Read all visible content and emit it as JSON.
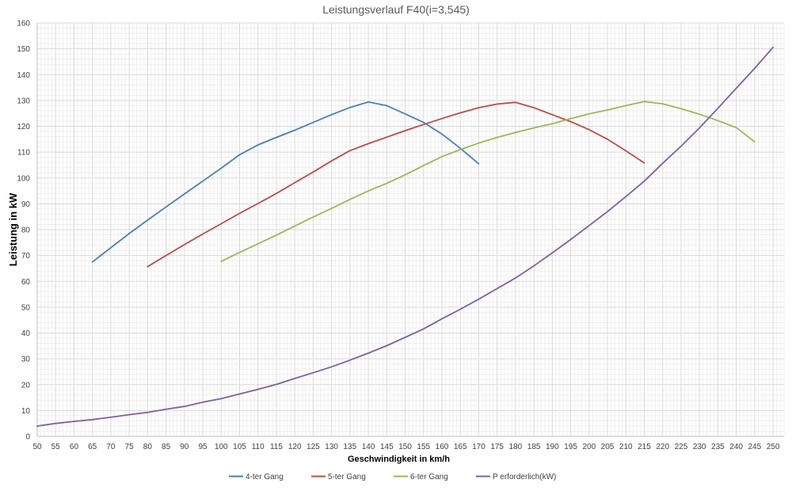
{
  "chart_data": {
    "type": "line",
    "title": "Leistungsverlauf F40(i=3,545)",
    "xlabel": "Geschwindigkeit in km/h",
    "ylabel": "Leistung in kW",
    "xlim": [
      50,
      253
    ],
    "ylim": [
      0,
      160
    ],
    "x_ticks": [
      50,
      55,
      60,
      65,
      70,
      75,
      80,
      85,
      90,
      95,
      100,
      105,
      110,
      115,
      120,
      125,
      130,
      135,
      140,
      145,
      150,
      155,
      160,
      165,
      170,
      175,
      180,
      185,
      190,
      195,
      200,
      205,
      210,
      215,
      220,
      225,
      230,
      235,
      240,
      245,
      250
    ],
    "y_ticks": [
      0,
      10,
      20,
      30,
      40,
      50,
      60,
      70,
      80,
      90,
      100,
      110,
      120,
      130,
      140,
      150,
      160
    ],
    "grid": true,
    "legend_position": "bottom",
    "series": [
      {
        "name": "4-ter Gang",
        "color": "#4a7ebb",
        "points": [
          [
            65,
            67.5
          ],
          [
            70,
            73
          ],
          [
            75,
            78.5
          ],
          [
            80,
            83.7
          ],
          [
            85,
            88.8
          ],
          [
            90,
            93.8
          ],
          [
            95,
            98.8
          ],
          [
            100,
            103.8
          ],
          [
            105,
            109
          ],
          [
            110,
            112.8
          ],
          [
            115,
            115.7
          ],
          [
            120,
            118.5
          ],
          [
            125,
            121.5
          ],
          [
            130,
            124.5
          ],
          [
            135,
            127.3
          ],
          [
            140,
            129.4
          ],
          [
            145,
            128
          ],
          [
            150,
            124.8
          ],
          [
            155,
            121.5
          ],
          [
            160,
            117
          ],
          [
            165,
            111.5
          ],
          [
            170,
            105.5
          ]
        ]
      },
      {
        "name": "5-ter Gang",
        "color": "#be4b48",
        "points": [
          [
            80,
            65.7
          ],
          [
            85,
            70
          ],
          [
            90,
            74.2
          ],
          [
            95,
            78.3
          ],
          [
            100,
            82.3
          ],
          [
            105,
            86.3
          ],
          [
            110,
            90.1
          ],
          [
            115,
            94
          ],
          [
            120,
            98.2
          ],
          [
            125,
            102.3
          ],
          [
            130,
            106.6
          ],
          [
            135,
            110.6
          ],
          [
            140,
            113.3
          ],
          [
            145,
            115.8
          ],
          [
            150,
            118.3
          ],
          [
            155,
            120.7
          ],
          [
            160,
            123
          ],
          [
            165,
            125.2
          ],
          [
            170,
            127.2
          ],
          [
            175,
            128.6
          ],
          [
            180,
            129.3
          ],
          [
            185,
            127.2
          ],
          [
            190,
            124.5
          ],
          [
            195,
            121.8
          ],
          [
            200,
            118.7
          ],
          [
            205,
            115
          ],
          [
            210,
            110.5
          ],
          [
            215,
            105.8
          ]
        ]
      },
      {
        "name": "6-ter Gang",
        "color": "#98b954",
        "points": [
          [
            100,
            67.7
          ],
          [
            105,
            71.2
          ],
          [
            110,
            74.5
          ],
          [
            115,
            77.9
          ],
          [
            120,
            81.4
          ],
          [
            125,
            84.9
          ],
          [
            130,
            88.2
          ],
          [
            135,
            91.7
          ],
          [
            140,
            95
          ],
          [
            145,
            97.9
          ],
          [
            150,
            101.2
          ],
          [
            155,
            104.8
          ],
          [
            160,
            108.3
          ],
          [
            165,
            111
          ],
          [
            170,
            113.5
          ],
          [
            175,
            115.7
          ],
          [
            180,
            117.6
          ],
          [
            185,
            119.4
          ],
          [
            190,
            121
          ],
          [
            195,
            123
          ],
          [
            200,
            124.8
          ],
          [
            205,
            126.3
          ],
          [
            210,
            128
          ],
          [
            215,
            129.6
          ],
          [
            220,
            128.7
          ],
          [
            225,
            126.8
          ],
          [
            230,
            124.7
          ],
          [
            235,
            122.2
          ],
          [
            240,
            119.5
          ],
          [
            245,
            114
          ]
        ]
      },
      {
        "name": "P erforderlich(kW)",
        "color": "#7d60a0",
        "points": [
          [
            50,
            4
          ],
          [
            55,
            5
          ],
          [
            60,
            5.8
          ],
          [
            65,
            6.5
          ],
          [
            70,
            7.4
          ],
          [
            75,
            8.4
          ],
          [
            80,
            9.3
          ],
          [
            85,
            10.5
          ],
          [
            90,
            11.6
          ],
          [
            95,
            13.2
          ],
          [
            100,
            14.6
          ],
          [
            105,
            16.4
          ],
          [
            110,
            18.2
          ],
          [
            115,
            20.1
          ],
          [
            120,
            22.4
          ],
          [
            125,
            24.6
          ],
          [
            130,
            26.9
          ],
          [
            135,
            29.5
          ],
          [
            140,
            32.2
          ],
          [
            145,
            35.1
          ],
          [
            150,
            38.3
          ],
          [
            155,
            41.6
          ],
          [
            160,
            45.5
          ],
          [
            165,
            49.2
          ],
          [
            170,
            53.1
          ],
          [
            175,
            57.2
          ],
          [
            180,
            61.3
          ],
          [
            185,
            66
          ],
          [
            190,
            71
          ],
          [
            195,
            76.2
          ],
          [
            200,
            81.6
          ],
          [
            205,
            87
          ],
          [
            210,
            92.8
          ],
          [
            215,
            98.8
          ],
          [
            220,
            105.7
          ],
          [
            225,
            112.3
          ],
          [
            230,
            119.4
          ],
          [
            235,
            127
          ],
          [
            240,
            134.7
          ],
          [
            245,
            142.4
          ],
          [
            250,
            150.6
          ]
        ]
      }
    ]
  }
}
